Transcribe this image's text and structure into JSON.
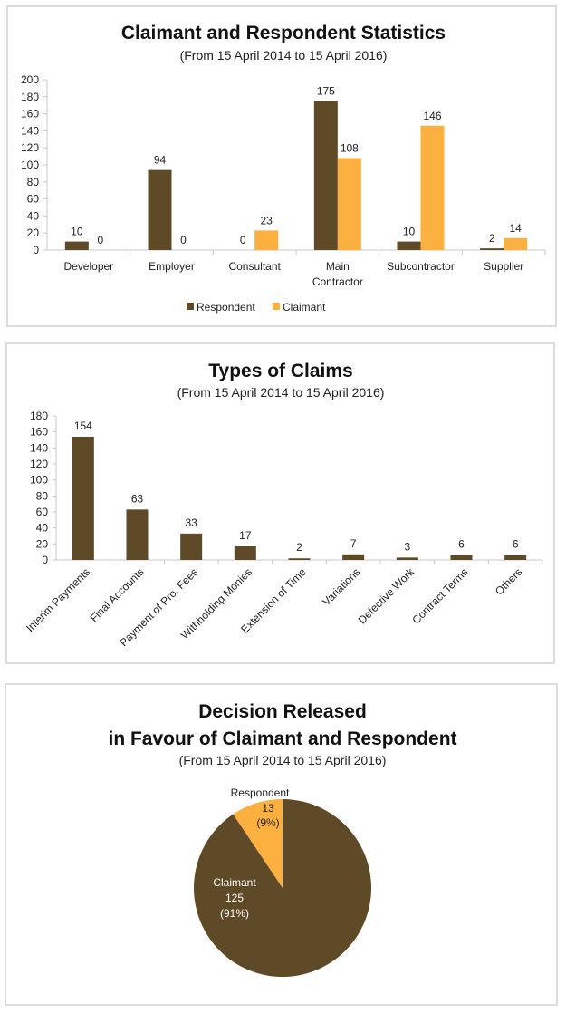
{
  "colors": {
    "respondent": "#5e4a26",
    "claimant": "#fbb040",
    "axis": "#c8c8c8"
  },
  "chart_data": [
    {
      "type": "bar",
      "title": "Claimant and Respondent Statistics",
      "subtitle": "(From 15 April 2014 to 15 April 2016)",
      "categories": [
        "Developer",
        "Employer",
        "Consultant",
        "Main Contractor",
        "Subcontractor",
        "Supplier"
      ],
      "category_lines": [
        [
          "Developer"
        ],
        [
          "Employer"
        ],
        [
          "Consultant"
        ],
        [
          "Main",
          "Contractor"
        ],
        [
          "Subcontractor"
        ],
        [
          "Supplier"
        ]
      ],
      "series": [
        {
          "name": "Respondent",
          "values": [
            10,
            94,
            0,
            175,
            10,
            2
          ]
        },
        {
          "name": "Claimant",
          "values": [
            0,
            0,
            23,
            108,
            146,
            14
          ]
        }
      ],
      "yticks": [
        0,
        20,
        40,
        60,
        80,
        100,
        120,
        140,
        160,
        180,
        200
      ],
      "ylim": [
        0,
        200
      ],
      "xlabel": "",
      "ylabel": "",
      "grid": false,
      "legend": "bottom-center"
    },
    {
      "type": "bar",
      "title": "Types of Claims",
      "subtitle": "(From 15 April 2014 to 15 April 2016)",
      "categories": [
        "Interim Payments",
        "Final Accounts",
        "Payment of Pro. Fees",
        "Withholding Monies",
        "Extension of Time",
        "Variations",
        "Defective Work",
        "Contract Terms",
        "Others"
      ],
      "values": [
        154,
        63,
        33,
        17,
        2,
        7,
        3,
        6,
        6
      ],
      "yticks": [
        0,
        20,
        40,
        60,
        80,
        100,
        120,
        140,
        160,
        180
      ],
      "ylim": [
        0,
        180
      ],
      "xlabel": "",
      "ylabel": "",
      "grid": false,
      "legend": "none",
      "tick_label_rotation": "diagonal"
    },
    {
      "type": "pie",
      "title_lines": [
        "Decision Released",
        "in Favour of Claimant and Respondent"
      ],
      "subtitle": "(From 15 April 2014 to 15 April 2016)",
      "slices": [
        {
          "name": "Respondent",
          "value": 13,
          "percent": "(9%)"
        },
        {
          "name": "Claimant",
          "value": 125,
          "percent": "(91%)"
        }
      ]
    }
  ]
}
